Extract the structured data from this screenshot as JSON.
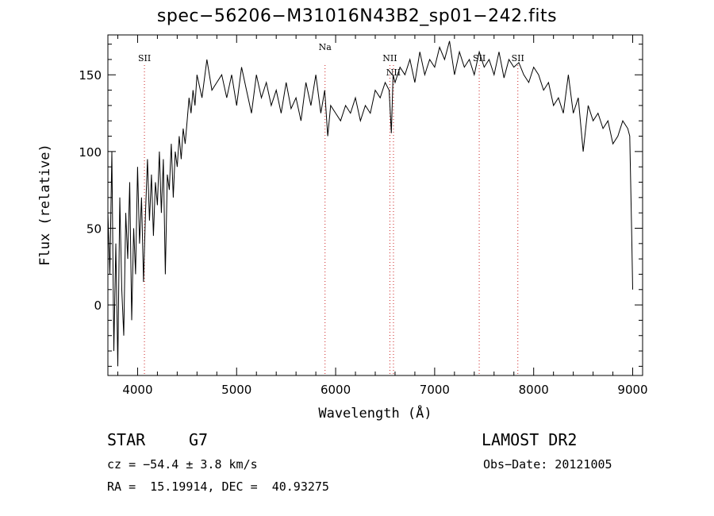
{
  "chart_data": {
    "type": "line",
    "title": "spec−56206−M31016N43B2_sp01−242.fits",
    "xlabel": "Wavelength (Å)",
    "ylabel": "Flux (relative)",
    "xlim": [
      3700,
      9100
    ],
    "ylim": [
      -46,
      176
    ],
    "grid": false,
    "xticks": [
      4000,
      5000,
      6000,
      7000,
      8000,
      9000
    ],
    "yticks": [
      0,
      50,
      100,
      150
    ],
    "series": [
      {
        "x": [
          3700,
          3720,
          3740,
          3760,
          3780,
          3800,
          3820,
          3840,
          3860,
          3880,
          3900,
          3920,
          3940,
          3960,
          3980,
          4000,
          4020,
          4040,
          4060,
          4080,
          4100,
          4120,
          4140,
          4160,
          4180,
          4200,
          4220,
          4240,
          4260,
          4280,
          4300,
          4320,
          4340,
          4360,
          4380,
          4400,
          4420,
          4440,
          4460,
          4480,
          4500,
          4520,
          4540,
          4560,
          4580,
          4600,
          4650,
          4700,
          4750,
          4800,
          4850,
          4900,
          4950,
          5000,
          5050,
          5100,
          5150,
          5200,
          5250,
          5300,
          5350,
          5400,
          5450,
          5500,
          5550,
          5600,
          5650,
          5700,
          5750,
          5800,
          5850,
          5890,
          5920,
          5950,
          6000,
          6050,
          6100,
          6150,
          6200,
          6250,
          6300,
          6350,
          6400,
          6450,
          6500,
          6540,
          6563,
          6580,
          6600,
          6650,
          6700,
          6750,
          6800,
          6850,
          6900,
          6950,
          7000,
          7050,
          7100,
          7150,
          7200,
          7250,
          7300,
          7350,
          7400,
          7450,
          7500,
          7550,
          7600,
          7650,
          7700,
          7750,
          7800,
          7850,
          7900,
          7950,
          8000,
          8050,
          8100,
          8150,
          8200,
          8250,
          8300,
          8350,
          8400,
          8450,
          8500,
          8550,
          8600,
          8650,
          8700,
          8750,
          8800,
          8850,
          8900,
          8950,
          8970,
          8990,
          9000
        ],
        "y": [
          60,
          20,
          100,
          -30,
          40,
          -40,
          70,
          10,
          -20,
          60,
          30,
          80,
          -10,
          50,
          20,
          90,
          40,
          70,
          15,
          60,
          95,
          55,
          85,
          45,
          80,
          65,
          100,
          60,
          95,
          20,
          85,
          75,
          105,
          70,
          100,
          90,
          110,
          95,
          115,
          105,
          120,
          135,
          125,
          140,
          130,
          150,
          135,
          160,
          140,
          145,
          150,
          135,
          150,
          130,
          155,
          140,
          125,
          150,
          135,
          145,
          130,
          140,
          125,
          145,
          128,
          135,
          120,
          145,
          130,
          150,
          125,
          140,
          110,
          130,
          125,
          120,
          130,
          125,
          135,
          120,
          130,
          125,
          140,
          135,
          145,
          140,
          112,
          150,
          145,
          155,
          150,
          160,
          145,
          165,
          150,
          160,
          155,
          168,
          160,
          172,
          150,
          165,
          155,
          160,
          150,
          165,
          155,
          160,
          150,
          165,
          148,
          160,
          155,
          158,
          150,
          145,
          155,
          150,
          140,
          145,
          130,
          135,
          125,
          150,
          125,
          135,
          100,
          130,
          120,
          125,
          115,
          120,
          105,
          110,
          120,
          115,
          110,
          45,
          10
        ]
      }
    ],
    "annotations": [
      {
        "label": "SII",
        "x": 4069
      },
      {
        "label": "Na",
        "x": 5893
      },
      {
        "label": "NII",
        "x": 6548
      },
      {
        "label": "NII",
        "x": 6584
      },
      {
        "label": "SII",
        "x": 7450
      },
      {
        "label": "SII",
        "x": 7840
      }
    ]
  },
  "info": {
    "class": "STAR",
    "subclass": "G7",
    "survey": "LAMOST DR2",
    "cz": "cz = −54.4 ± 3.8 km/s",
    "obs_date": "Obs−Date: 20121005",
    "radec": "RA =  15.19914, DEC =  40.93275"
  }
}
